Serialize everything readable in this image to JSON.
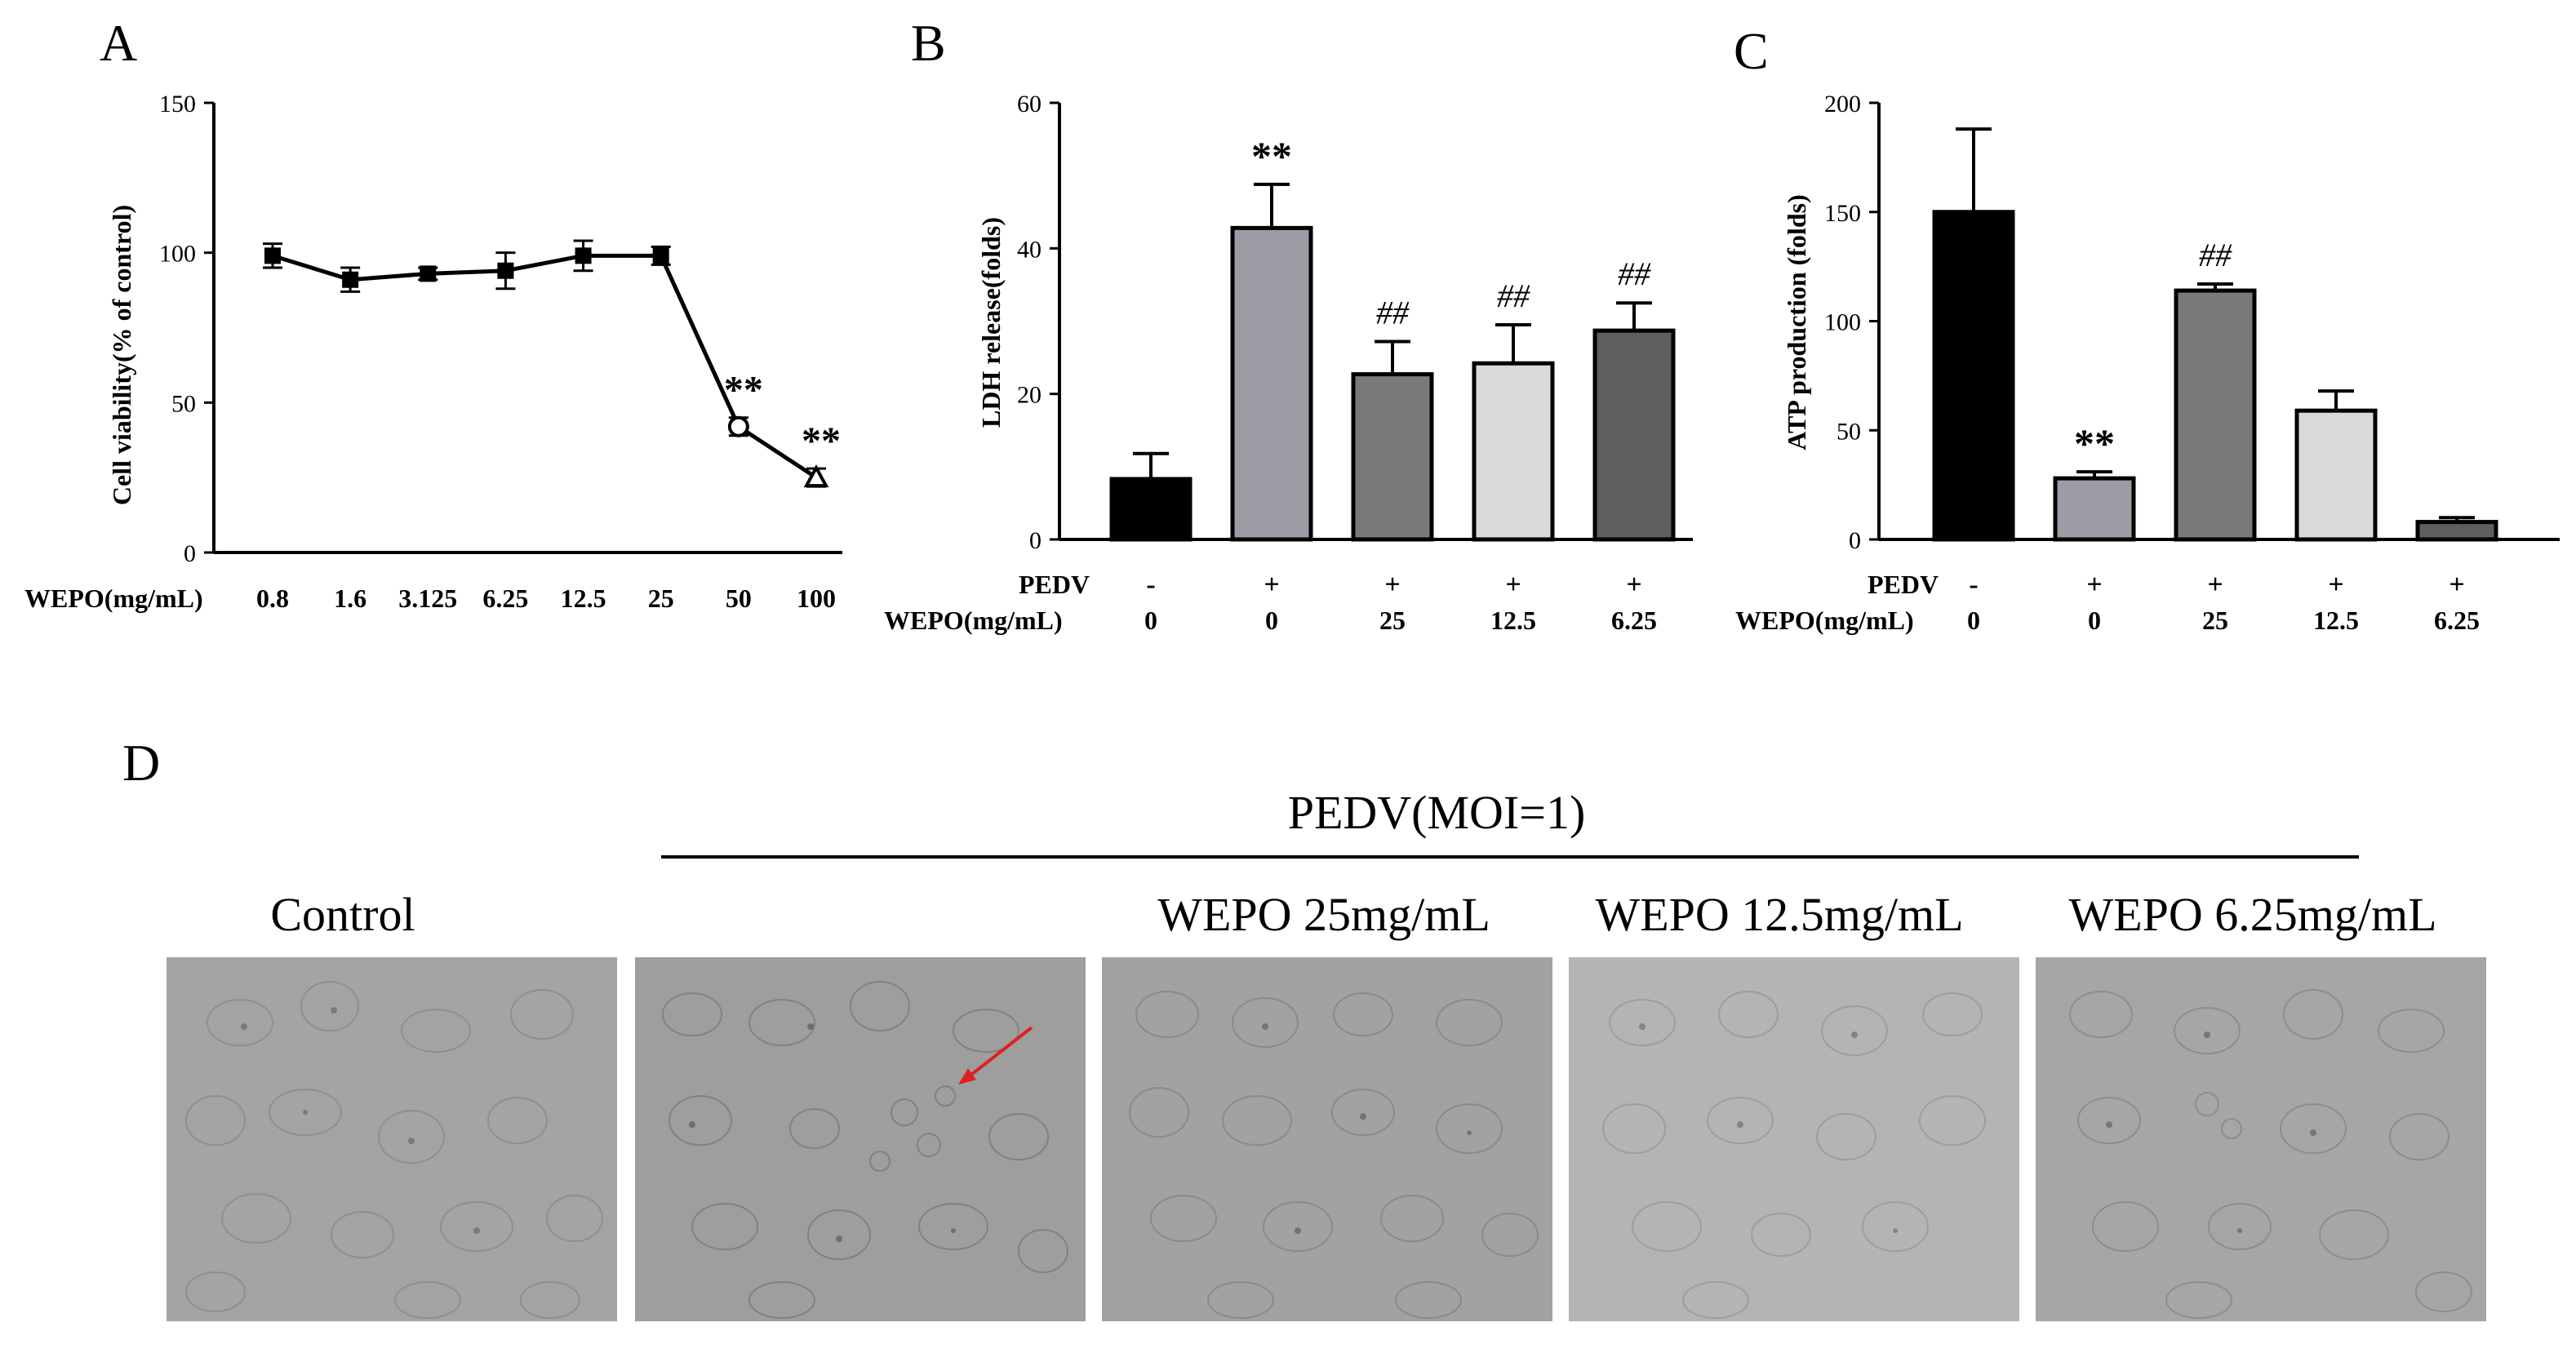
{
  "panels": {
    "A": {
      "letter": "A",
      "chart_data": {
        "type": "line",
        "ylabel": "Cell viability(% of control)",
        "xlabel_prefix": "WEPO(mg/mL)",
        "categories": [
          "0.8",
          "1.6",
          "3.125",
          "6.25",
          "12.5",
          "25",
          "50",
          "100"
        ],
        "values": [
          99,
          91,
          93,
          94,
          99,
          99,
          42,
          25
        ],
        "errors": [
          4,
          4,
          2,
          6,
          5,
          3,
          3,
          3
        ],
        "significance": [
          "",
          "",
          "",
          "",
          "",
          "",
          "**",
          "**"
        ],
        "yticks": [
          "0",
          "50",
          "100",
          "150"
        ],
        "ylim": [
          0,
          150
        ],
        "color": "#000000"
      }
    },
    "B": {
      "letter": "B",
      "chart_data": {
        "type": "bar",
        "ylabel": "LDH release(folds)",
        "row_labels": [
          "PEDV",
          "WEPO(mg/mL)"
        ],
        "pedv": [
          "-",
          "+",
          "+",
          "+",
          "+"
        ],
        "wepo": [
          "0",
          "0",
          "25",
          "12.5",
          "6.25"
        ],
        "values": [
          8.3,
          42.8,
          22.7,
          24.2,
          28.7
        ],
        "errors": [
          3.5,
          6.0,
          4.5,
          5.3,
          3.8
        ],
        "significance": [
          "",
          "**",
          "##",
          "##",
          "##"
        ],
        "colors": [
          "#000000",
          "#9c9ca4",
          "#7a7a7a",
          "#d9d9d9",
          "#5e5e5e"
        ],
        "yticks": [
          "0",
          "20",
          "40",
          "60"
        ],
        "ylim": [
          0,
          60
        ]
      }
    },
    "C": {
      "letter": "C",
      "chart_data": {
        "type": "bar",
        "ylabel": "ATP production (folds)",
        "row_labels": [
          "PEDV",
          "WEPO(mg/mL)"
        ],
        "pedv": [
          "-",
          "+",
          "+",
          "+",
          "+"
        ],
        "wepo": [
          "0",
          "0",
          "25",
          "12.5",
          "6.25"
        ],
        "values": [
          150,
          28,
          114,
          59,
          8
        ],
        "errors": [
          38,
          3,
          3,
          9,
          2
        ],
        "significance": [
          "",
          "**",
          "##",
          "",
          ""
        ],
        "colors": [
          "#000000",
          "#9c9ca4",
          "#7a7a7a",
          "#d9d9d9",
          "#5e5e5e"
        ],
        "yticks": [
          "0",
          "50",
          "100",
          "150",
          "200"
        ],
        "ylim": [
          0,
          200
        ]
      }
    },
    "D": {
      "letter": "D",
      "group_label": "PEDV(MOI=1)",
      "labels": [
        "Control",
        "",
        "WEPO 25mg/mL",
        "WEPO 12.5mg/mL",
        "WEPO 6.25mg/mL"
      ],
      "arrow_color": "#e02020"
    }
  }
}
